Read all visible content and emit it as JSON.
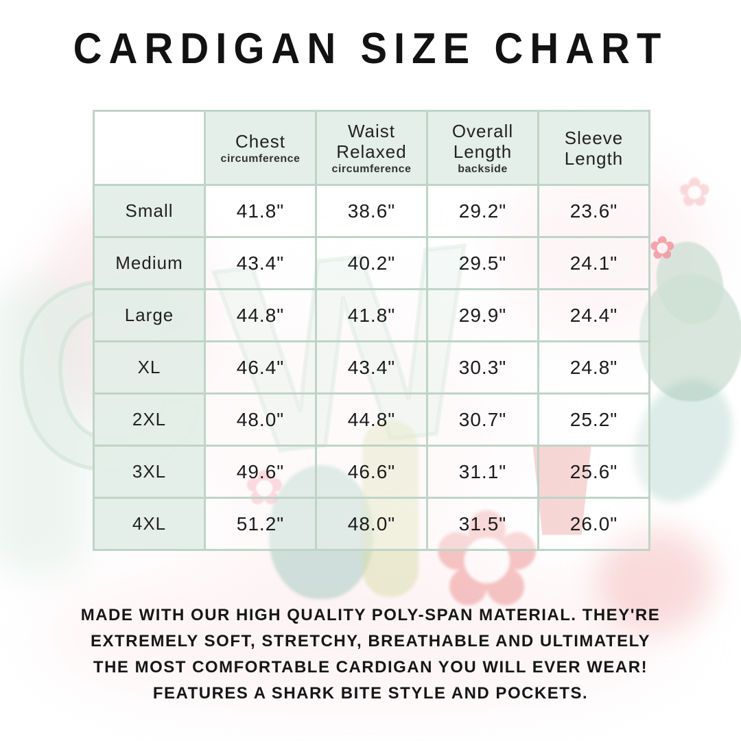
{
  "title": "CARDIGAN SIZE CHART",
  "colors": {
    "cell_mint": "#e3eee8",
    "table_border": "#bed4c7",
    "text": "#1b1b1b",
    "watermark_mint": "#cde0d5",
    "watermark_pink": "#f7d8dd",
    "watermark_red": "#ec8080",
    "watermark_teal": "#8ebeb2"
  },
  "watermark": {
    "letters": "CW",
    "flower_glyph": "✿"
  },
  "chart_data": {
    "type": "table",
    "title": "CARDIGAN SIZE CHART",
    "columns": [
      {
        "label": "Chest",
        "sub": "circumference"
      },
      {
        "label": "Waist Relaxed",
        "sub": "circumference"
      },
      {
        "label": "Overall Length",
        "sub": "backside"
      },
      {
        "label": "Sleeve Length",
        "sub": ""
      }
    ],
    "rows": [
      {
        "size": "Small",
        "values": [
          "41.8\"",
          "38.6\"",
          "29.2\"",
          "23.6\""
        ]
      },
      {
        "size": "Medium",
        "values": [
          "43.4\"",
          "40.2\"",
          "29.5\"",
          "24.1\""
        ]
      },
      {
        "size": "Large",
        "values": [
          "44.8\"",
          "41.8\"",
          "29.9\"",
          "24.4\""
        ]
      },
      {
        "size": "XL",
        "values": [
          "46.4\"",
          "43.4\"",
          "30.3\"",
          "24.8\""
        ]
      },
      {
        "size": "2XL",
        "values": [
          "48.0\"",
          "44.8\"",
          "30.7\"",
          "25.2\""
        ]
      },
      {
        "size": "3XL",
        "values": [
          "49.6\"",
          "46.6\"",
          "31.1\"",
          "25.6\""
        ]
      },
      {
        "size": "4XL",
        "values": [
          "51.2\"",
          "48.0\"",
          "31.5\"",
          "26.0\""
        ]
      }
    ]
  },
  "description": {
    "lines": [
      "MADE WITH OUR HIGH QUALITY POLY-SPAN MATERIAL. THEY'RE",
      "EXTREMELY SOFT, STRETCHY, BREATHABLE AND ULTIMATELY",
      "THE MOST COMFORTABLE CARDIGAN YOU WILL EVER WEAR!",
      "FEATURES A SHARK BITE STYLE AND POCKETS."
    ]
  }
}
